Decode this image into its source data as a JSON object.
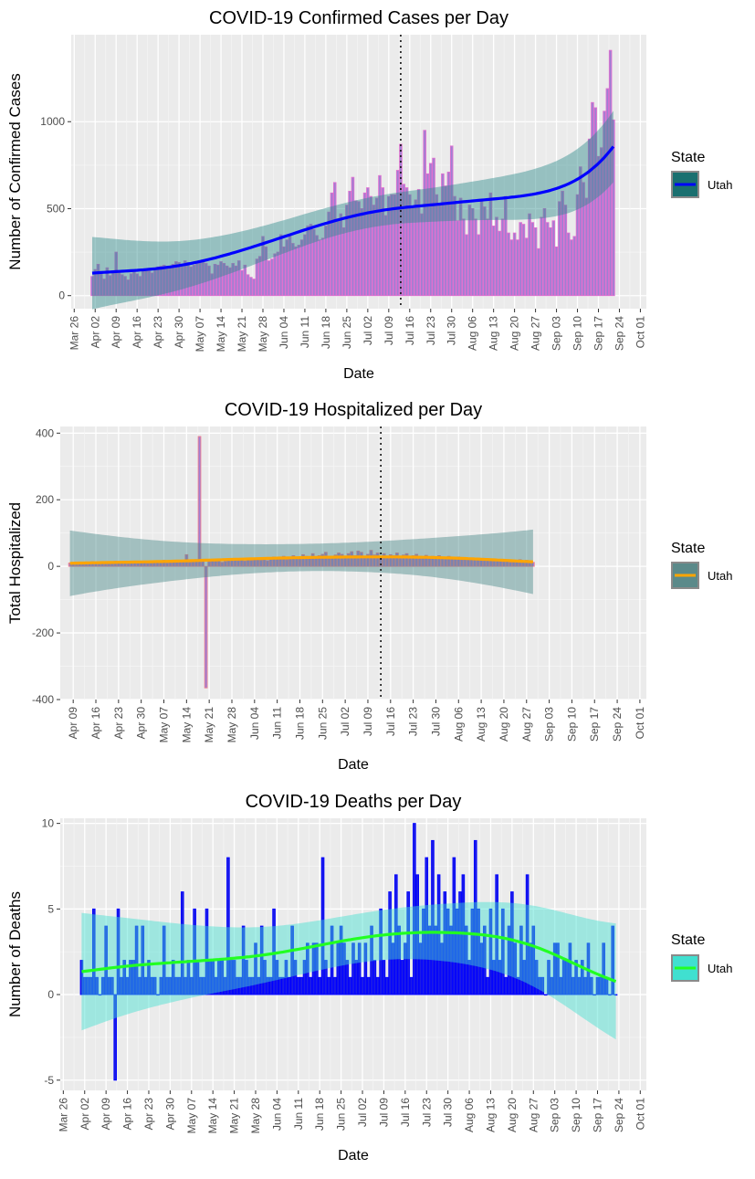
{
  "charts": [
    {
      "type": "bar",
      "title": "COVID-19 Confirmed Cases per Day",
      "xlabel": "Date",
      "ylabel": "Number of Confirmed Cases",
      "legend": {
        "title": "State",
        "label": "Utah",
        "position": "right"
      },
      "xlim": [
        "2020-03-25",
        "2020-10-03"
      ],
      "ylim": [
        -75,
        1500
      ],
      "yticks": [
        0,
        500,
        1000
      ],
      "xticks": [
        "Mar 26",
        "Apr 02",
        "Apr 09",
        "Apr 16",
        "Apr 23",
        "Apr 30",
        "May 07",
        "May 14",
        "May 21",
        "May 28",
        "Jun 04",
        "Jun 11",
        "Jun 18",
        "Jun 25",
        "Jul 02",
        "Jul 09",
        "Jul 16",
        "Jul 23",
        "Jul 30",
        "Aug 06",
        "Aug 13",
        "Aug 20",
        "Aug 27",
        "Sep 03",
        "Sep 10",
        "Sep 17",
        "Sep 24",
        "Oct 01"
      ],
      "vline_date": "2020-07-13",
      "colors": {
        "bar_fill": "#9f7fd3",
        "bar_outline": "#e070d0",
        "smooth": "#0000ff",
        "ribbon": "#2e8b8b",
        "legend_key_fill": "#1a7070"
      },
      "start_date": "2020-04-01",
      "values": [
        110,
        150,
        180,
        130,
        95,
        160,
        115,
        130,
        250,
        140,
        120,
        110,
        90,
        125,
        140,
        125,
        110,
        145,
        150,
        140,
        130,
        160,
        165,
        170,
        175,
        165,
        170,
        180,
        195,
        190,
        180,
        200,
        190,
        165,
        175,
        185,
        190,
        205,
        185,
        170,
        125,
        180,
        175,
        195,
        185,
        170,
        160,
        185,
        170,
        200,
        145,
        175,
        120,
        105,
        95,
        210,
        225,
        340,
        280,
        200,
        210,
        240,
        250,
        350,
        280,
        320,
        340,
        300,
        280,
        290,
        320,
        350,
        400,
        410,
        380,
        345,
        320,
        330,
        400,
        480,
        590,
        650,
        440,
        470,
        390,
        520,
        600,
        680,
        545,
        540,
        500,
        590,
        620,
        570,
        520,
        560,
        690,
        620,
        460,
        570,
        580,
        580,
        720,
        870,
        640,
        620,
        580,
        510,
        550,
        610,
        470,
        950,
        700,
        760,
        790,
        580,
        520,
        700,
        630,
        710,
        860,
        570,
        430,
        560,
        440,
        350,
        520,
        500,
        440,
        350,
        550,
        510,
        440,
        590,
        400,
        450,
        370,
        440,
        570,
        360,
        320,
        360,
        320,
        420,
        410,
        330,
        470,
        420,
        390,
        270,
        450,
        500,
        420,
        390,
        430,
        280,
        540,
        600,
        520,
        360,
        320,
        340,
        580,
        740,
        650,
        560,
        900,
        1110,
        1080,
        800,
        850,
        1060,
        1190,
        1410,
        1010
      ]
    },
    {
      "type": "bar",
      "title": "COVID-19 Hospitalized per Day",
      "xlabel": "Date",
      "ylabel": "Total Hospitalized",
      "legend": {
        "title": "State",
        "label": "Utah",
        "position": "right"
      },
      "xlim": [
        "2020-04-05",
        "2020-10-03"
      ],
      "ylim": [
        -400,
        420
      ],
      "yticks": [
        -400,
        -200,
        0,
        200,
        400
      ],
      "xticks": [
        "Apr 09",
        "Apr 16",
        "Apr 23",
        "Apr 30",
        "May 07",
        "May 14",
        "May 21",
        "May 28",
        "Jun 04",
        "Jun 11",
        "Jun 18",
        "Jun 25",
        "Jul 02",
        "Jul 09",
        "Jul 16",
        "Jul 23",
        "Jul 30",
        "Aug 06",
        "Aug 13",
        "Aug 20",
        "Aug 27",
        "Sep 03",
        "Sep 10",
        "Sep 17",
        "Sep 24",
        "Oct 01"
      ],
      "vline_date": "2020-07-13",
      "colors": {
        "bar_fill": "#9f7fd3",
        "bar_outline": "#f08090",
        "smooth": "#ffa500",
        "ribbon": "#4a8a8a",
        "legend_key_fill": "#5b8a8a"
      },
      "start_date": "2020-04-08",
      "values": [
        10,
        8,
        12,
        9,
        11,
        7,
        10,
        14,
        9,
        12,
        11,
        10,
        8,
        13,
        15,
        9,
        11,
        10,
        12,
        14,
        13,
        10,
        12,
        11,
        9,
        13,
        15,
        12,
        14,
        18,
        10,
        16,
        14,
        12,
        15,
        13,
        35,
        12,
        17,
        20,
        390,
        15,
        -365,
        14,
        18,
        16,
        20,
        12,
        15,
        18,
        22,
        19,
        17,
        21,
        16,
        24,
        18,
        20,
        22,
        19,
        25,
        17,
        21,
        28,
        22,
        24,
        30,
        20,
        26,
        32,
        24,
        28,
        35,
        30,
        26,
        38,
        28,
        32,
        36,
        42,
        30,
        28,
        34,
        40,
        36,
        30,
        38,
        44,
        32,
        46,
        42,
        30,
        36,
        48,
        34,
        40,
        30,
        38,
        28,
        35,
        32,
        40,
        30,
        34,
        38,
        28,
        32,
        36,
        30,
        26,
        33,
        28,
        30,
        24,
        32,
        28,
        22,
        30,
        26,
        24,
        28,
        20,
        26,
        22,
        24,
        20,
        22,
        18,
        24,
        20,
        22,
        18,
        20,
        16,
        14,
        18,
        12,
        16,
        15,
        20,
        14,
        18,
        16,
        12
      ]
    },
    {
      "type": "bar",
      "title": "COVID-19 Deaths per Day",
      "xlabel": "Date",
      "ylabel": "Number of Deaths",
      "legend": {
        "title": "State",
        "label": "Utah",
        "position": "right"
      },
      "xlim": [
        "2020-03-25",
        "2020-10-03"
      ],
      "ylim": [
        -5.6,
        10.3
      ],
      "yticks": [
        -5,
        0,
        5,
        10
      ],
      "xticks": [
        "Mar 26",
        "Apr 02",
        "Apr 09",
        "Apr 16",
        "Apr 23",
        "Apr 30",
        "May 07",
        "May 14",
        "May 21",
        "May 28",
        "Jun 04",
        "Jun 11",
        "Jun 18",
        "Jun 25",
        "Jul 02",
        "Jul 09",
        "Jul 16",
        "Jul 23",
        "Jul 30",
        "Aug 06",
        "Aug 13",
        "Aug 20",
        "Aug 27",
        "Sep 03",
        "Sep 10",
        "Sep 17",
        "Sep 24",
        "Oct 01"
      ],
      "vline_date": null,
      "colors": {
        "bar_fill": "#1c1ce8",
        "bar_outline": "#0000ff",
        "smooth": "#22ff22",
        "ribbon": "#40e0d0",
        "legend_key_fill": "#40e0d0"
      },
      "start_date": "2020-04-01",
      "values": [
        2,
        1,
        1,
        1,
        5,
        1,
        0,
        1,
        4,
        1,
        1,
        -5,
        5,
        1,
        2,
        1,
        2,
        2,
        4,
        1,
        4,
        1,
        2,
        1,
        1,
        0,
        1,
        4,
        1,
        1,
        2,
        1,
        1,
        6,
        1,
        2,
        1,
        5,
        2,
        1,
        1,
        5,
        2,
        2,
        1,
        2,
        2,
        1,
        8,
        2,
        2,
        1,
        1,
        4,
        2,
        1,
        1,
        3,
        1,
        4,
        2,
        1,
        1,
        5,
        2,
        1,
        1,
        2,
        1,
        4,
        2,
        1,
        1,
        2,
        3,
        1,
        3,
        3,
        1,
        8,
        2,
        1,
        4,
        1,
        3,
        4,
        3,
        2,
        1,
        3,
        2,
        3,
        1,
        3,
        1,
        4,
        2,
        1,
        5,
        2,
        1,
        6,
        3,
        7,
        4,
        2,
        3,
        6,
        1,
        10,
        7,
        3,
        5,
        8,
        4,
        9,
        4,
        7,
        3,
        6,
        5,
        4,
        8,
        5,
        6,
        7,
        4,
        2,
        5,
        9,
        5,
        3,
        4,
        1,
        5,
        2,
        7,
        2,
        5,
        1,
        4,
        6,
        3,
        1,
        4,
        2,
        7,
        3,
        4,
        2,
        1,
        1,
        0,
        2,
        1,
        3,
        3,
        1,
        2,
        2,
        3,
        1,
        2,
        1,
        2,
        1,
        3,
        1,
        0,
        1,
        1,
        3,
        1,
        0,
        4,
        0
      ]
    }
  ]
}
